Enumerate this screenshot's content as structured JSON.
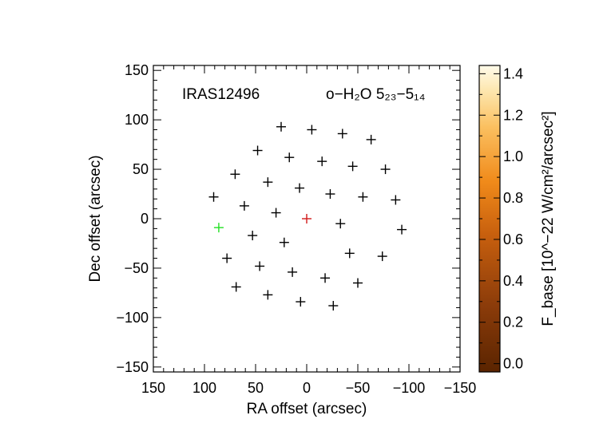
{
  "chart_data": {
    "type": "heatmap",
    "annotations": {
      "source": "IRAS12496",
      "line": "o−H₂O 5₂₃−5₁₄"
    },
    "xlabel": "RA offset (arcsec)",
    "ylabel": "Dec offset (arcsec)",
    "xlim": [
      150,
      -150
    ],
    "ylim": [
      -155,
      155
    ],
    "xticks": [
      150,
      100,
      50,
      0,
      -50,
      -100,
      -150
    ],
    "yticks": [
      150,
      100,
      50,
      0,
      -50,
      -100,
      -150
    ],
    "xtick_labels": [
      "150",
      "100",
      "50",
      "0",
      "−50",
      "−100",
      "−150"
    ],
    "ytick_labels": [
      "150",
      "100",
      "50",
      "0",
      "−50",
      "−100",
      "−150"
    ],
    "map_extent": {
      "ra": [
        92,
        -93
      ],
      "dec": [
        -88,
        94
      ]
    },
    "peak": {
      "ra": 0,
      "dec": 0,
      "value": 1.42
    },
    "colorbar": {
      "label": "F_base [10^−22 W/cm²/arcsec²]",
      "range": [
        -0.04,
        1.44
      ],
      "ticks": [
        0.0,
        0.2,
        0.4,
        0.6,
        0.8,
        1.0,
        1.2,
        1.4
      ],
      "tick_labels": [
        "0.0",
        "0.2",
        "0.4",
        "0.6",
        "0.8",
        "1.0",
        "1.2",
        "1.4"
      ]
    },
    "spaxels": [
      {
        "ra": 25,
        "dec": 93
      },
      {
        "ra": -5,
        "dec": 90
      },
      {
        "ra": -35,
        "dec": 86
      },
      {
        "ra": -63,
        "dec": 80
      },
      {
        "ra": 48,
        "dec": 69
      },
      {
        "ra": 17,
        "dec": 62
      },
      {
        "ra": -15,
        "dec": 58
      },
      {
        "ra": -45,
        "dec": 53
      },
      {
        "ra": -77,
        "dec": 50
      },
      {
        "ra": 70,
        "dec": 45
      },
      {
        "ra": 38,
        "dec": 37
      },
      {
        "ra": 7,
        "dec": 31
      },
      {
        "ra": -23,
        "dec": 25
      },
      {
        "ra": -55,
        "dec": 22
      },
      {
        "ra": -87,
        "dec": 19
      },
      {
        "ra": 91,
        "dec": 22
      },
      {
        "ra": 61,
        "dec": 13
      },
      {
        "ra": 30,
        "dec": 6
      },
      {
        "ra": -33,
        "dec": -5
      },
      {
        "ra": -93,
        "dec": -11
      },
      {
        "ra": 53,
        "dec": -17
      },
      {
        "ra": 22,
        "dec": -24
      },
      {
        "ra": -42,
        "dec": -35
      },
      {
        "ra": -74,
        "dec": -38
      },
      {
        "ra": 78,
        "dec": -40
      },
      {
        "ra": 46,
        "dec": -48
      },
      {
        "ra": 14,
        "dec": -54
      },
      {
        "ra": -18,
        "dec": -60
      },
      {
        "ra": -50,
        "dec": -65
      },
      {
        "ra": 69,
        "dec": -69
      },
      {
        "ra": 38,
        "dec": -77
      },
      {
        "ra": 6,
        "dec": -84
      },
      {
        "ra": -26,
        "dec": -88
      }
    ],
    "center_spaxel": {
      "ra": 0,
      "dec": 0,
      "color": "#d11a1a"
    },
    "highlight_spaxel": {
      "ra": 86,
      "dec": -9,
      "color": "#22e022"
    }
  }
}
